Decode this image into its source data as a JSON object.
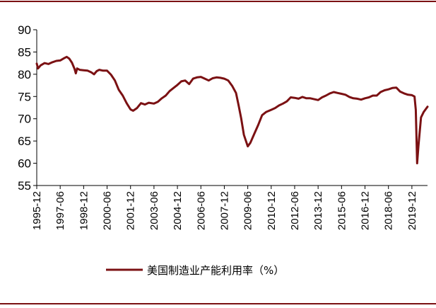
{
  "chart_data": {
    "type": "line",
    "title": "",
    "xlabel": "",
    "ylabel": "",
    "ylim": [
      55,
      90
    ],
    "yticks": [
      55,
      60,
      65,
      70,
      75,
      80,
      85,
      90
    ],
    "xticks": [
      "1995-12",
      "1997-06",
      "1998-12",
      "2000-06",
      "2001-12",
      "2003-06",
      "2004-12",
      "2006-06",
      "2007-12",
      "2009-06",
      "2010-12",
      "2012-06",
      "2013-12",
      "2015-06",
      "2016-12",
      "2018-06",
      "2019-12"
    ],
    "xlim": [
      "1995-12",
      "2020-12"
    ],
    "legend": "bottom",
    "series": [
      {
        "name": "美国制造业产能利用率（%）",
        "color": "#7b1113",
        "points": [
          [
            "1995-12",
            82.4
          ],
          [
            "1996-01",
            81.3
          ],
          [
            "1996-03",
            82.0
          ],
          [
            "1996-06",
            82.5
          ],
          [
            "1996-09",
            82.3
          ],
          [
            "1996-12",
            82.7
          ],
          [
            "1997-03",
            83.0
          ],
          [
            "1997-06",
            83.1
          ],
          [
            "1997-09",
            83.6
          ],
          [
            "1997-11",
            83.9
          ],
          [
            "1998-01",
            83.5
          ],
          [
            "1998-03",
            82.6
          ],
          [
            "1998-05",
            81.2
          ],
          [
            "1998-06",
            80.2
          ],
          [
            "1998-07",
            81.3
          ],
          [
            "1998-09",
            81.0
          ],
          [
            "1998-12",
            80.9
          ],
          [
            "1999-03",
            80.8
          ],
          [
            "1999-06",
            80.4
          ],
          [
            "1999-08",
            80.0
          ],
          [
            "1999-10",
            80.7
          ],
          [
            "1999-12",
            81.0
          ],
          [
            "2000-03",
            80.8
          ],
          [
            "2000-06",
            80.8
          ],
          [
            "2000-09",
            79.9
          ],
          [
            "2000-12",
            78.6
          ],
          [
            "2001-03",
            76.5
          ],
          [
            "2001-06",
            75.2
          ],
          [
            "2001-09",
            73.5
          ],
          [
            "2001-12",
            72.1
          ],
          [
            "2002-02",
            71.8
          ],
          [
            "2002-05",
            72.4
          ],
          [
            "2002-08",
            73.5
          ],
          [
            "2002-11",
            73.2
          ],
          [
            "2003-02",
            73.6
          ],
          [
            "2003-06",
            73.4
          ],
          [
            "2003-09",
            73.8
          ],
          [
            "2003-12",
            74.6
          ],
          [
            "2004-03",
            75.2
          ],
          [
            "2004-06",
            76.2
          ],
          [
            "2004-09",
            76.9
          ],
          [
            "2004-12",
            77.6
          ],
          [
            "2005-03",
            78.4
          ],
          [
            "2005-06",
            78.6
          ],
          [
            "2005-09",
            77.8
          ],
          [
            "2005-12",
            79.0
          ],
          [
            "2006-03",
            79.3
          ],
          [
            "2006-06",
            79.4
          ],
          [
            "2006-09",
            79.0
          ],
          [
            "2006-12",
            78.6
          ],
          [
            "2007-03",
            79.1
          ],
          [
            "2007-06",
            79.3
          ],
          [
            "2007-09",
            79.2
          ],
          [
            "2007-12",
            79.0
          ],
          [
            "2008-03",
            78.6
          ],
          [
            "2008-06",
            77.4
          ],
          [
            "2008-09",
            75.8
          ],
          [
            "2008-11",
            73.0
          ],
          [
            "2009-01",
            70.0
          ],
          [
            "2009-03",
            66.4
          ],
          [
            "2009-06",
            63.8
          ],
          [
            "2009-08",
            64.6
          ],
          [
            "2009-11",
            66.6
          ],
          [
            "2010-02",
            68.6
          ],
          [
            "2010-05",
            70.8
          ],
          [
            "2010-08",
            71.5
          ],
          [
            "2010-12",
            72.0
          ],
          [
            "2011-03",
            72.4
          ],
          [
            "2011-06",
            73.0
          ],
          [
            "2011-09",
            73.4
          ],
          [
            "2011-12",
            73.9
          ],
          [
            "2012-03",
            74.8
          ],
          [
            "2012-06",
            74.7
          ],
          [
            "2012-09",
            74.5
          ],
          [
            "2012-12",
            74.9
          ],
          [
            "2013-03",
            74.6
          ],
          [
            "2013-06",
            74.6
          ],
          [
            "2013-09",
            74.4
          ],
          [
            "2013-12",
            74.2
          ],
          [
            "2014-03",
            74.8
          ],
          [
            "2014-06",
            75.2
          ],
          [
            "2014-09",
            75.7
          ],
          [
            "2014-12",
            76.0
          ],
          [
            "2015-03",
            75.8
          ],
          [
            "2015-06",
            75.6
          ],
          [
            "2015-09",
            75.4
          ],
          [
            "2015-12",
            74.9
          ],
          [
            "2016-03",
            74.6
          ],
          [
            "2016-06",
            74.5
          ],
          [
            "2016-09",
            74.3
          ],
          [
            "2016-12",
            74.6
          ],
          [
            "2017-03",
            74.8
          ],
          [
            "2017-06",
            75.2
          ],
          [
            "2017-09",
            75.2
          ],
          [
            "2017-12",
            76.0
          ],
          [
            "2018-03",
            76.4
          ],
          [
            "2018-06",
            76.6
          ],
          [
            "2018-09",
            76.9
          ],
          [
            "2018-12",
            77.0
          ],
          [
            "2019-03",
            76.1
          ],
          [
            "2019-06",
            75.7
          ],
          [
            "2019-09",
            75.4
          ],
          [
            "2019-12",
            75.3
          ],
          [
            "2020-02",
            75.0
          ],
          [
            "2020-03",
            72.0
          ],
          [
            "2020-04",
            60.0
          ],
          [
            "2020-05",
            63.8
          ],
          [
            "2020-07",
            70.3
          ],
          [
            "2020-09",
            71.5
          ],
          [
            "2020-12",
            72.7
          ]
        ]
      }
    ]
  }
}
